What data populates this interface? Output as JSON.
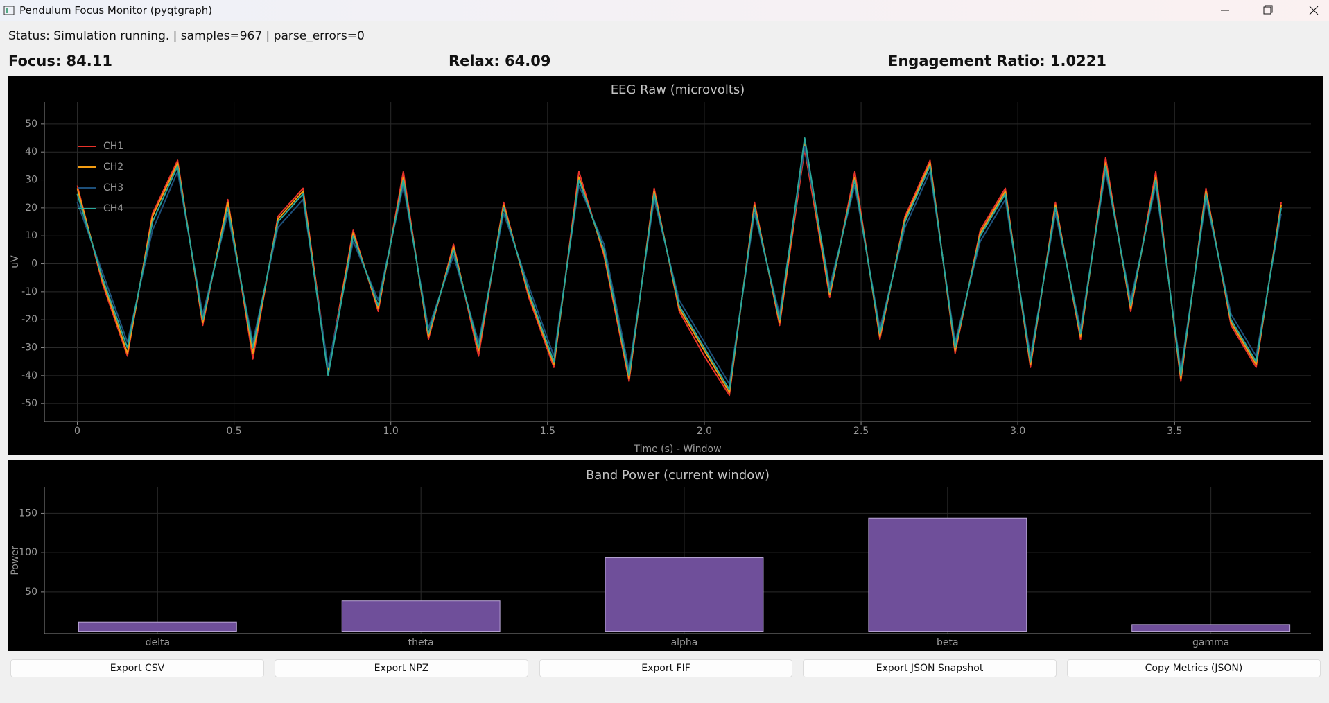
{
  "window": {
    "title": "Pendulum Focus Monitor (pyqtgraph)"
  },
  "status": "Status: Simulation running. | samples=967 | parse_errors=0",
  "metrics": [
    "Focus: 84.11",
    "Relax: 64.09",
    "Engagement Ratio: 1.0221"
  ],
  "chart_data": [
    {
      "type": "line",
      "title": "EEG Raw (microvolts)",
      "x_label": "Time (s) - Window",
      "y_label": "uV",
      "xlim": [
        -0.105,
        3.935
      ],
      "ylim": [
        -56.4,
        57.9
      ],
      "xticks": [
        0,
        0.5,
        {
          "value": 1,
          "label": "1.0"
        },
        1.5,
        {
          "value": 2,
          "label": "2.0"
        },
        2.5,
        {
          "value": 3,
          "label": "3.0"
        },
        3.5
      ],
      "yticks": [
        -50,
        -40,
        -30,
        -20,
        -10,
        0,
        10,
        20,
        30,
        40,
        50
      ],
      "grid": true,
      "legend": "top-left",
      "x": [
        0,
        0.08,
        0.16,
        0.24,
        0.32,
        0.4,
        0.48,
        0.56,
        0.64,
        0.72,
        0.8,
        0.88,
        0.96,
        1.04,
        1.12,
        1.2,
        1.28,
        1.36,
        1.44,
        1.52,
        1.6,
        1.68,
        1.76,
        1.84,
        1.92,
        2,
        2.08,
        2.16,
        2.24,
        2.32,
        2.4,
        2.48,
        2.56,
        2.64,
        2.72,
        2.8,
        2.88,
        2.96,
        3.04,
        3.12,
        3.2,
        3.28,
        3.36,
        3.44,
        3.52,
        3.6,
        3.68,
        3.76,
        3.84
      ],
      "series": [
        {
          "name": "CH1",
          "color": "#e8322a",
          "values": [
            28,
            -7,
            -33,
            18,
            37,
            -22,
            23,
            -34,
            17,
            27,
            -38,
            12,
            -17,
            33,
            -27,
            7,
            -33,
            22,
            -12,
            -37,
            33,
            3,
            -42,
            27,
            -17,
            -33,
            -47,
            22,
            -22,
            41,
            -12,
            33,
            -27,
            17,
            37,
            -32,
            12,
            27,
            -37,
            22,
            -27,
            38,
            -17,
            33,
            -42,
            27,
            -22,
            -37,
            22
          ]
        },
        {
          "name": "CH2",
          "color": "#f39c12",
          "values": [
            27,
            -6,
            -32,
            17,
            36,
            -21,
            22,
            -32,
            16,
            26,
            -39,
            11,
            -16,
            31,
            -26,
            6,
            -31,
            21,
            -11,
            -36,
            31,
            4,
            -41,
            26,
            -16,
            -31,
            -46,
            21,
            -21,
            43,
            -11,
            31,
            -26,
            16,
            36,
            -31,
            11,
            26,
            -36,
            21,
            -26,
            36,
            -16,
            31,
            -41,
            26,
            -21,
            -36,
            21
          ]
        },
        {
          "name": "CH3",
          "color": "#1d4f7a",
          "values": [
            22,
            -3,
            -28,
            12,
            33,
            -18,
            18,
            -28,
            13,
            23,
            -37,
            8,
            -13,
            28,
            -23,
            3,
            -28,
            18,
            -8,
            -33,
            28,
            7,
            -38,
            23,
            -13,
            -28,
            -43,
            18,
            -18,
            42,
            -8,
            28,
            -23,
            13,
            33,
            -28,
            8,
            23,
            -33,
            18,
            -23,
            33,
            -13,
            28,
            -38,
            23,
            -18,
            -33,
            18
          ]
        },
        {
          "name": "CH4",
          "color": "#2aa89a",
          "values": [
            25,
            -5,
            -30,
            15,
            35,
            -20,
            20,
            -30,
            15,
            25,
            -40,
            10,
            -15,
            30,
            -25,
            5,
            -30,
            20,
            -10,
            -35,
            30,
            5,
            -40,
            25,
            -15,
            -30,
            -45,
            20,
            -20,
            45,
            -10,
            30,
            -25,
            15,
            35,
            -30,
            10,
            25,
            -35,
            20,
            -25,
            35,
            -15,
            30,
            -40,
            25,
            -20,
            -35,
            20
          ]
        }
      ]
    },
    {
      "type": "bar",
      "title": "Band Power (current window)",
      "y_label": "Power",
      "categories": [
        "delta",
        "theta",
        "alpha",
        "beta",
        "gamma"
      ],
      "values": [
        11.8,
        38.7,
        93.5,
        144,
        8.6
      ],
      "color": "#6f4f9a",
      "ylim": [
        -3,
        183
      ],
      "yticks": [
        50,
        100,
        150
      ],
      "grid": true
    }
  ],
  "buttons": [
    "Export CSV",
    "Export NPZ",
    "Export FIF",
    "Export JSON Snapshot",
    "Copy Metrics (JSON)"
  ]
}
